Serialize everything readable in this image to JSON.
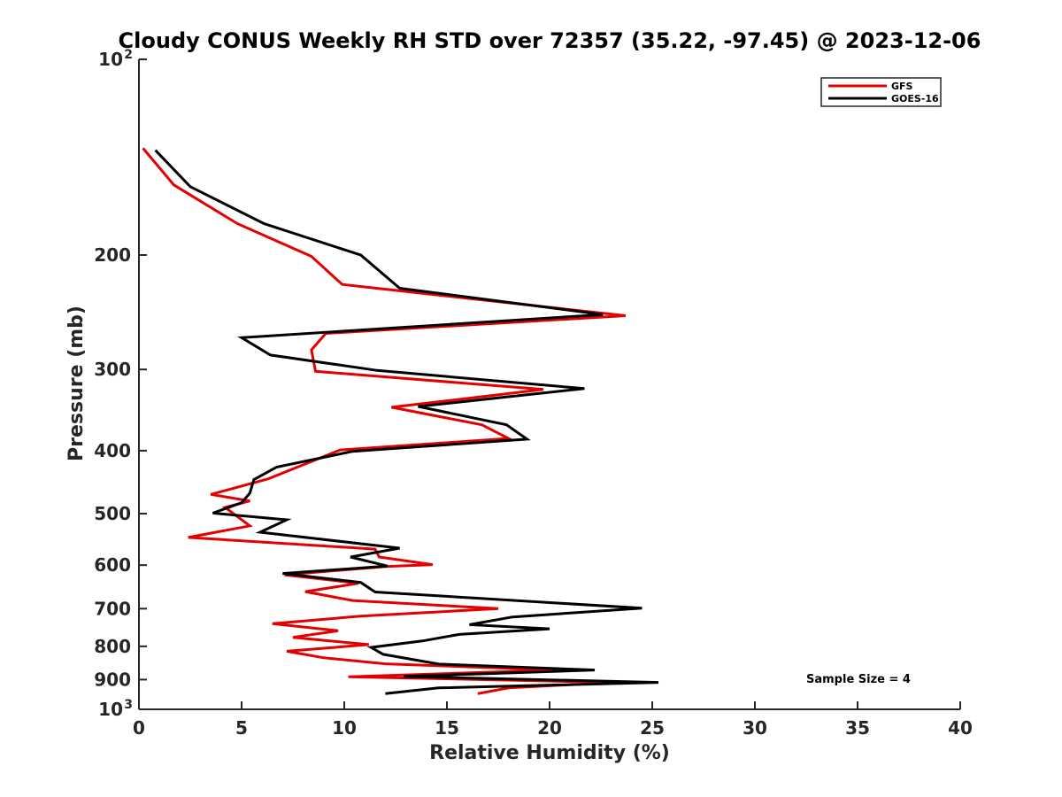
{
  "chart_data": {
    "type": "line",
    "title": "Cloudy CONUS Weekly RH STD over 72357 (35.22, -97.45) @ 2023-12-06",
    "xlabel": "Relative Humidity (%)",
    "ylabel": "Pressure (mb)",
    "xlim": [
      0,
      40
    ],
    "ylim": [
      100,
      1000
    ],
    "y_scale": "log",
    "y_reversed": true,
    "grid": false,
    "legend_position": "top-right",
    "x_ticks": [
      0,
      5,
      10,
      15,
      20,
      25,
      30,
      35,
      40
    ],
    "x_tick_labels": [
      "0",
      "5",
      "10",
      "15",
      "20",
      "25",
      "30",
      "35",
      "40"
    ],
    "y_ticks": [
      200,
      300,
      400,
      500,
      600,
      700,
      800,
      900
    ],
    "y_tick_labels": [
      "200",
      "300",
      "400",
      "500",
      "600",
      "700",
      "800",
      "900"
    ],
    "y_end_labels": [
      {
        "base": "10",
        "exp": "2",
        "value": 100
      },
      {
        "base": "10",
        "exp": "3",
        "value": 1000
      }
    ],
    "annotation": "Sample Size = 4",
    "series": [
      {
        "name": "GFS",
        "color": "#e50000",
        "points": [
          [
            0.2,
            137
          ],
          [
            1.7,
            156
          ],
          [
            4.8,
            179
          ],
          [
            8.4,
            201
          ],
          [
            9.9,
            222
          ],
          [
            23.7,
            248
          ],
          [
            9.1,
            264
          ],
          [
            8.4,
            280
          ],
          [
            8.6,
            302
          ],
          [
            19.7,
            322
          ],
          [
            12.3,
            343
          ],
          [
            16.7,
            365
          ],
          [
            18.0,
            383
          ],
          [
            9.8,
            399
          ],
          [
            6.3,
            442
          ],
          [
            3.5,
            467
          ],
          [
            5.4,
            478
          ],
          [
            4.2,
            489
          ],
          [
            5.4,
            522
          ],
          [
            2.4,
            544
          ],
          [
            11.5,
            567
          ],
          [
            11.7,
            583
          ],
          [
            14.3,
            599
          ],
          [
            12.0,
            603
          ],
          [
            7.1,
            621
          ],
          [
            10.7,
            640
          ],
          [
            8.1,
            659
          ],
          [
            10.4,
            680
          ],
          [
            17.5,
            700
          ],
          [
            10.8,
            719
          ],
          [
            6.5,
            738
          ],
          [
            9.7,
            757
          ],
          [
            7.5,
            775
          ],
          [
            11.2,
            795
          ],
          [
            7.2,
            814
          ],
          [
            9.0,
            833
          ],
          [
            12.0,
            851
          ],
          [
            20.3,
            870
          ],
          [
            10.2,
            891
          ],
          [
            23.1,
            909
          ],
          [
            18.0,
            927
          ],
          [
            16.5,
            946
          ]
        ]
      },
      {
        "name": "GOES-16",
        "color": "#000000",
        "points": [
          [
            0.8,
            138
          ],
          [
            2.5,
            157
          ],
          [
            6.1,
            179
          ],
          [
            10.8,
            200
          ],
          [
            12.7,
            225
          ],
          [
            22.6,
            247
          ],
          [
            5.0,
            268
          ],
          [
            6.4,
            285
          ],
          [
            11.6,
            301
          ],
          [
            21.7,
            321
          ],
          [
            13.6,
            342
          ],
          [
            17.9,
            365
          ],
          [
            18.9,
            384
          ],
          [
            10.4,
            401
          ],
          [
            6.7,
            424
          ],
          [
            5.6,
            443
          ],
          [
            5.4,
            465
          ],
          [
            5.0,
            481
          ],
          [
            3.6,
            499
          ],
          [
            7.2,
            511
          ],
          [
            5.9,
            534
          ],
          [
            12.7,
            565
          ],
          [
            10.3,
            583
          ],
          [
            12.1,
            602
          ],
          [
            7.0,
            618
          ],
          [
            10.8,
            638
          ],
          [
            11.5,
            660
          ],
          [
            24.5,
            699
          ],
          [
            18.2,
            721
          ],
          [
            16.1,
            741
          ],
          [
            20.0,
            752
          ],
          [
            15.6,
            767
          ],
          [
            13.8,
            785
          ],
          [
            11.3,
            803
          ],
          [
            11.9,
            823
          ],
          [
            14.6,
            852
          ],
          [
            22.2,
            870
          ],
          [
            12.9,
            890
          ],
          [
            25.3,
            909
          ],
          [
            14.6,
            927
          ],
          [
            12.0,
            946
          ]
        ]
      }
    ]
  }
}
